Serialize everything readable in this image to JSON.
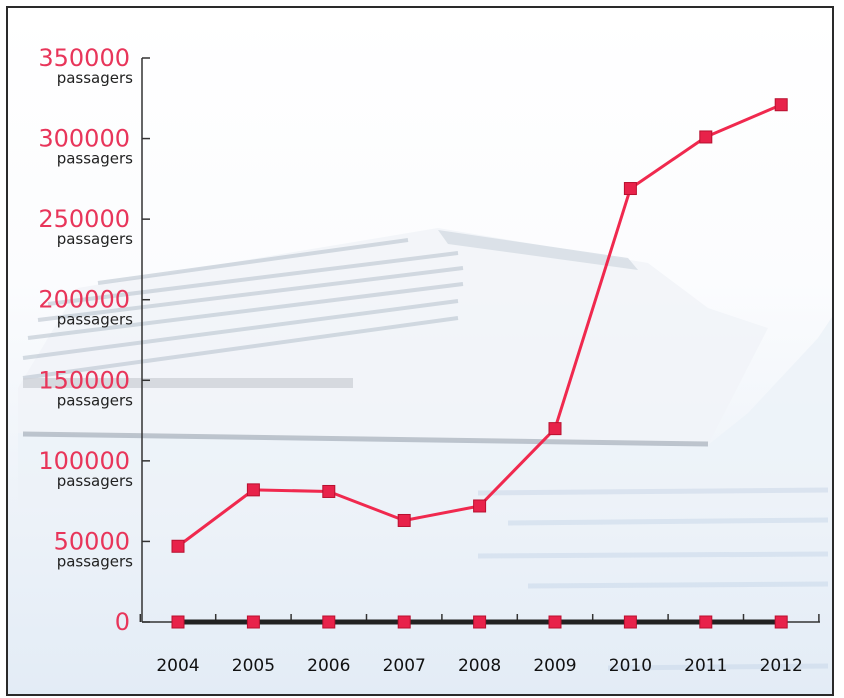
{
  "chart_data": {
    "type": "line",
    "title": "",
    "xlabel": "",
    "ylabel": "",
    "categories": [
      "2004",
      "2005",
      "2006",
      "2007",
      "2008",
      "2009",
      "2010",
      "2011",
      "2012"
    ],
    "series": [
      {
        "values": [
          47000,
          82000,
          81000,
          63000,
          72000,
          120000,
          269000,
          301000,
          321000
        ]
      },
      {
        "values": [
          0,
          0,
          0,
          0,
          0,
          0,
          0,
          0,
          0
        ]
      }
    ],
    "ylim": [
      0,
      350000
    ],
    "yticks": [
      {
        "value": 0,
        "label": "0",
        "unit": ""
      },
      {
        "value": 50000,
        "label": "50000",
        "unit": "passagers"
      },
      {
        "value": 100000,
        "label": "100000",
        "unit": "passagers"
      },
      {
        "value": 150000,
        "label": "150000",
        "unit": "passagers"
      },
      {
        "value": 200000,
        "label": "200000",
        "unit": "passagers"
      },
      {
        "value": 250000,
        "label": "250000",
        "unit": "passagers"
      },
      {
        "value": 300000,
        "label": "300000",
        "unit": "passagers"
      },
      {
        "value": 350000,
        "label": "350000",
        "unit": "passagers"
      }
    ],
    "grid": false,
    "legend": "none",
    "colors": {
      "line": "#f0294e",
      "marker": "#e8224a",
      "marker_edge": "#b8102f",
      "baseline": "#222222",
      "tick_label": "#e8355a"
    }
  }
}
